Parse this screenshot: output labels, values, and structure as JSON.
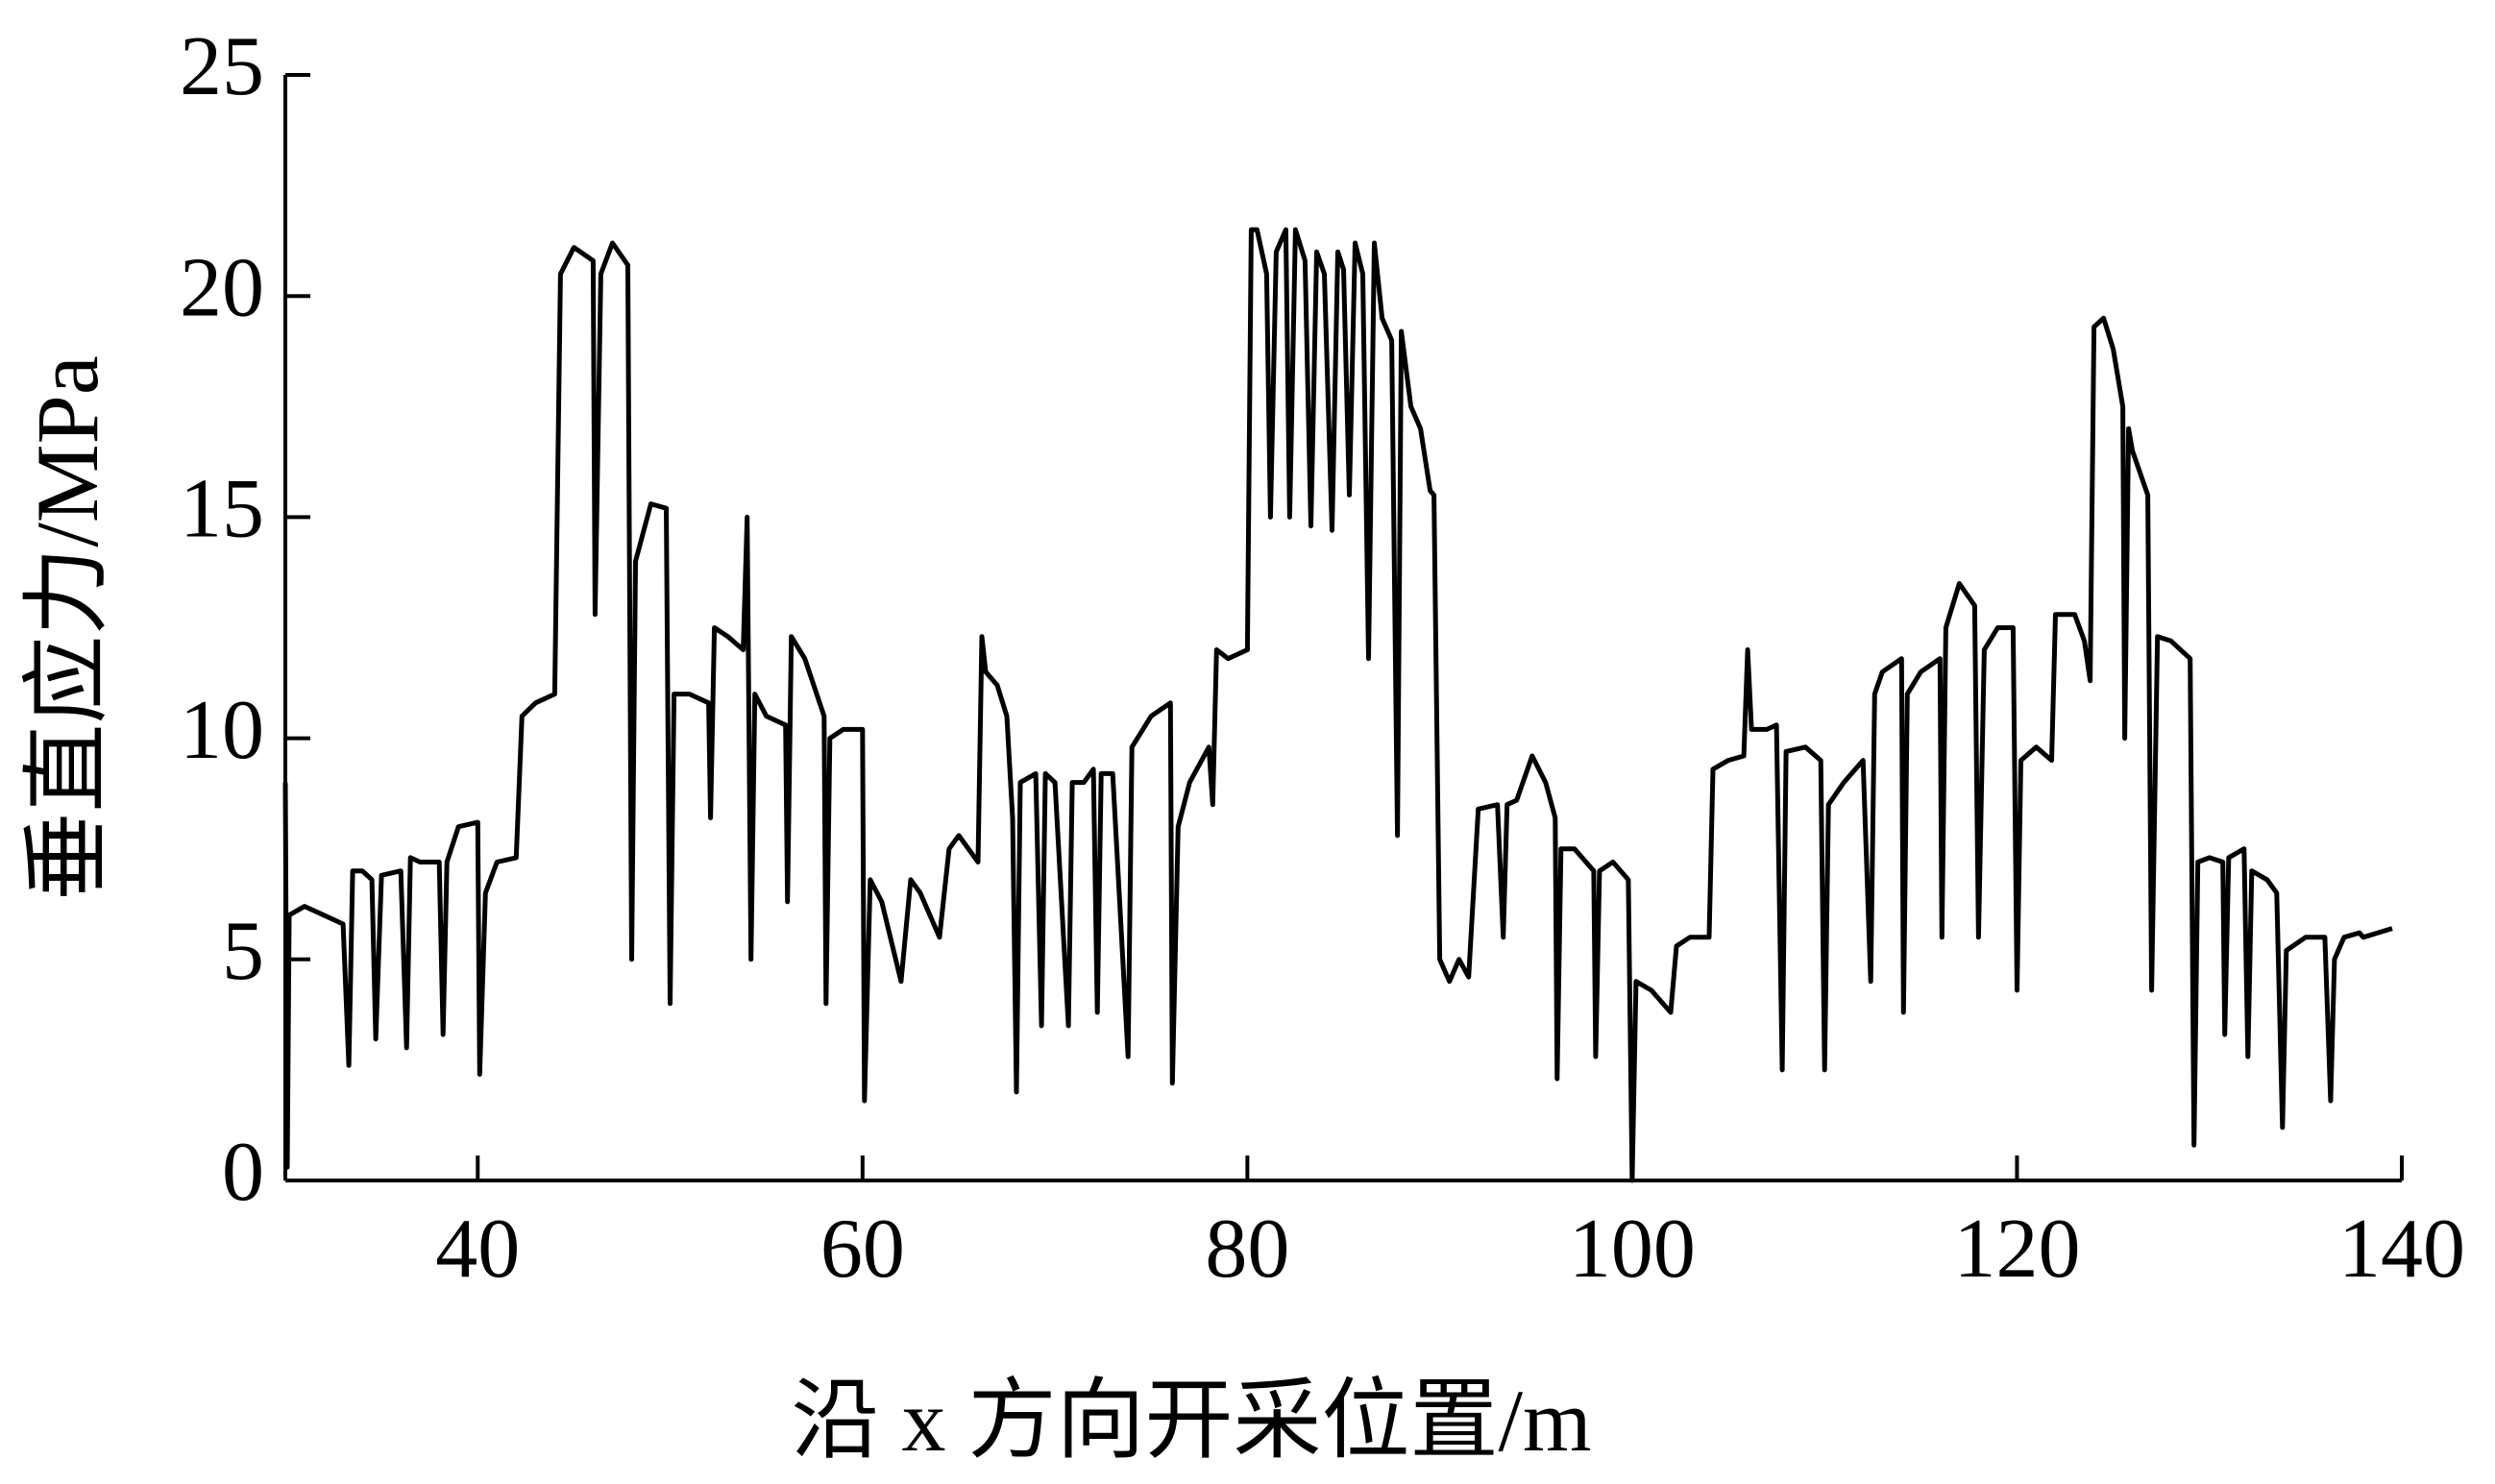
{
  "chart_data": {
    "type": "line",
    "x_label": "沿 x 方向开采位置/m",
    "y_label": "垂直应力/MPa",
    "xlim": [
      30,
      140
    ],
    "xticks": [
      40,
      60,
      80,
      100,
      120,
      140
    ],
    "ylim": [
      0,
      25
    ],
    "yticks": [
      0,
      5,
      10,
      15,
      20,
      25
    ],
    "series": [
      {
        "color": "#000000",
        "x": [
          30,
          30.1,
          30.2,
          31,
          32,
          33,
          33.3,
          33.5,
          34,
          34.5,
          34.7,
          35,
          36,
          36.3,
          36.5,
          37,
          38,
          38.2,
          38.4,
          39,
          40,
          40.1,
          40.4,
          41,
          42,
          42.3,
          43,
          44,
          44.3,
          45,
          46,
          46.1,
          46.4,
          47,
          47.8,
          48,
          48.2,
          49,
          49.8,
          50,
          50.2,
          51,
          52,
          52.1,
          52.3,
          53,
          53.8,
          54,
          54.2,
          54.4,
          55,
          56,
          56.1,
          56.3,
          57,
          58,
          58.1,
          58.3,
          59,
          60,
          60.1,
          60.4,
          61,
          62,
          62.5,
          63,
          64,
          64.5,
          65,
          66,
          66.2,
          66.4,
          67,
          67.5,
          67.8,
          68,
          68.2,
          69,
          69.3,
          69.5,
          70,
          70.7,
          70.9,
          71.5,
          72,
          72.2,
          72.4,
          73,
          73.8,
          74,
          75,
          76,
          76.1,
          76.4,
          77,
          78,
          78.2,
          78.4,
          79,
          80,
          80.2,
          80.5,
          81,
          81.2,
          81.5,
          82,
          82.2,
          82.5,
          83,
          83.3,
          83.6,
          84,
          84.4,
          84.7,
          85,
          85.3,
          85.6,
          86,
          86.3,
          86.6,
          87,
          87.5,
          87.8,
          88,
          88.5,
          89,
          89.5,
          89.7,
          90,
          90.5,
          91,
          91.5,
          92,
          93,
          93.3,
          93.5,
          94,
          94.8,
          95.5,
          96,
          96.1,
          96.3,
          97,
          98,
          98.1,
          98.3,
          99,
          99.8,
          100,
          100.2,
          101,
          102,
          102.3,
          103,
          104,
          104.2,
          105,
          105.8,
          106,
          106.2,
          107,
          107.5,
          107.8,
          108,
          109,
          109.8,
          110,
          110.2,
          111,
          112,
          112.4,
          112.6,
          113,
          114,
          114.1,
          114.3,
          115,
          116,
          116.1,
          116.3,
          117,
          117.8,
          118,
          118.3,
          119,
          119.8,
          120,
          120.2,
          121,
          121.8,
          122,
          123,
          123.5,
          123.8,
          124,
          124.5,
          125,
          125.5,
          125.6,
          125.8,
          126,
          126.8,
          127,
          127.3,
          128,
          129,
          129.2,
          129.4,
          130,
          130.7,
          130.8,
          131,
          131.8,
          132,
          132.2,
          133,
          133.5,
          133.8,
          134,
          135,
          136,
          136.3,
          136.5,
          137,
          137.8,
          138,
          139.5
        ],
        "values": [
          9,
          0.3,
          6,
          6.2,
          6,
          5.8,
          2.6,
          7,
          7,
          6.8,
          3.2,
          6.9,
          7,
          3,
          7.3,
          7.2,
          7.2,
          3.3,
          7.2,
          8,
          8.1,
          2.4,
          6.5,
          7.2,
          7.3,
          10.5,
          10.8,
          11,
          20.5,
          21.1,
          20.8,
          12.8,
          20.5,
          21.2,
          20.7,
          5,
          14,
          15.3,
          15.2,
          4,
          11,
          11,
          10.8,
          8.2,
          12.5,
          12.3,
          12,
          15,
          5,
          11,
          10.5,
          10.3,
          6.3,
          12.3,
          11.8,
          10.5,
          4,
          10,
          10.2,
          10.2,
          1.8,
          6.8,
          6.3,
          4.5,
          6.8,
          6.5,
          5.5,
          7.5,
          7.8,
          7.2,
          12.3,
          11.5,
          11.2,
          10.5,
          8.2,
          2,
          9,
          9.2,
          3.5,
          9.2,
          9,
          3.5,
          9,
          9,
          9.3,
          3.8,
          9.2,
          9.2,
          2.8,
          9.8,
          10.5,
          10.8,
          2.2,
          8,
          9,
          9.8,
          8.5,
          12,
          11.8,
          12,
          21.5,
          21.5,
          20.5,
          15,
          21,
          21.5,
          15,
          21.5,
          20.8,
          14.8,
          21,
          20.5,
          14.7,
          21,
          20.6,
          15.5,
          21.2,
          20.5,
          11.8,
          21.2,
          19.5,
          19,
          7.8,
          19.2,
          17.5,
          17,
          15.6,
          15.5,
          5,
          4.5,
          5,
          4.6,
          8.4,
          8.5,
          5.5,
          8.5,
          8.6,
          9.6,
          9,
          8.2,
          2.3,
          7.5,
          7.5,
          7,
          2.8,
          7,
          7.2,
          6.8,
          0,
          4.5,
          4.3,
          3.8,
          5.3,
          5.5,
          5.5,
          9.3,
          9.5,
          9.6,
          12,
          10.2,
          10.2,
          10.3,
          2.5,
          9.7,
          9.8,
          9.5,
          2.5,
          8.5,
          9,
          9.5,
          4.5,
          11,
          11.5,
          11.8,
          3.8,
          11,
          11.5,
          11.8,
          5.5,
          12.5,
          13.5,
          13,
          5.5,
          12,
          12.5,
          12.5,
          4.3,
          9.5,
          9.8,
          9.5,
          12.8,
          12.8,
          12.2,
          11.3,
          19.3,
          19.5,
          18.8,
          17.5,
          10,
          17,
          16.5,
          15.5,
          4.3,
          12.3,
          12.2,
          11.8,
          0.8,
          7.2,
          7.3,
          7.2,
          3.3,
          7.3,
          7.5,
          2.8,
          7,
          6.8,
          6.5,
          1.2,
          5.2,
          5.5,
          5.5,
          1.8,
          5,
          5.5,
          5.6,
          5.5,
          5.7
        ]
      }
    ]
  }
}
